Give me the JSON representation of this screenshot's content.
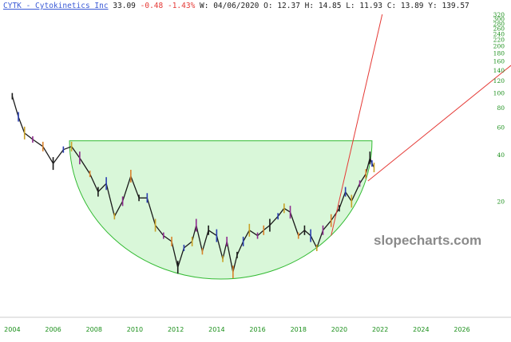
{
  "header": {
    "symbol_link": "CYTK - Cytokinetics Inc",
    "price": "33.09",
    "change": "-0.48",
    "change_pct": "-1.43%",
    "period": "W: 04/06/2020",
    "open_label": "O:",
    "open": "12.37",
    "high_label": "H:",
    "high": "14.85",
    "low_label": "L:",
    "low": "11.93",
    "close_label": "C:",
    "close": "13.89",
    "y_label": "Y:",
    "y": "139.57"
  },
  "watermark": "slopecharts.com",
  "colors": {
    "axis_text": "#1a8f1a",
    "bowl_fill": "#d9f7d9",
    "bowl_stroke": "#33bb33",
    "trendline": "#e53935",
    "negative": "#e53935",
    "link": "#3b5bd6"
  },
  "chart_data": {
    "type": "line",
    "scale": "log",
    "ylim": [
      10,
      320
    ],
    "xlim": [
      2003.4,
      2028.4
    ],
    "y_ticks": [
      "320",
      "300",
      "280",
      "260",
      "240",
      "220",
      "200",
      "180",
      "160",
      "140",
      "120",
      "100",
      "80",
      "60",
      "40",
      "20"
    ],
    "x_ticks": [
      "2004",
      "2006",
      "2008",
      "2010",
      "2012",
      "2014",
      "2016",
      "2018",
      "2020",
      "2022",
      "2024",
      "2026"
    ],
    "grid": false,
    "series": [
      {
        "x": [
          2004.0,
          2004.3,
          2004.6,
          2005.0,
          2005.5,
          2006.0,
          2006.5,
          2006.9,
          2007.3,
          2007.8,
          2008.2,
          2008.6,
          2009.0,
          2009.4,
          2009.8,
          2010.2,
          2010.6,
          2011.0,
          2011.4,
          2011.8,
          2012.1,
          2012.4,
          2012.8,
          2013.0,
          2013.3,
          2013.6,
          2014.0,
          2014.3,
          2014.5,
          2014.8,
          2015.0,
          2015.3,
          2015.6,
          2016.0,
          2016.3,
          2016.6,
          2017.0,
          2017.3,
          2017.6,
          2018.0,
          2018.3,
          2018.6,
          2018.9,
          2019.2,
          2019.6,
          2020.0,
          2020.3,
          2020.6,
          2021.0,
          2021.3,
          2021.5,
          2021.6,
          2021.7
        ],
        "y": [
          95,
          70,
          55,
          50,
          45,
          35,
          43,
          45,
          38,
          30,
          23,
          26,
          16,
          20,
          29,
          21,
          21,
          14,
          12,
          11,
          7.5,
          10,
          11,
          14,
          9.5,
          13,
          12,
          8.5,
          11,
          7,
          9,
          11,
          13,
          12,
          13,
          14,
          16,
          18,
          17,
          12,
          13,
          12,
          10,
          13,
          15,
          18,
          23,
          20,
          26,
          30,
          38,
          35,
          33
        ]
      }
    ],
    "overlays": {
      "bowl": {
        "x_start": 2006.8,
        "x_end": 2021.6,
        "rim_y": 49,
        "bottom_x": 2014.5,
        "bottom_y": 6.3
      },
      "trendlines": [
        {
          "x": [
            2019.6,
            2022.1
          ],
          "y": [
            12,
            320
          ]
        },
        {
          "x": [
            2021.4,
            2028.4
          ],
          "y": [
            27,
            150
          ]
        }
      ]
    }
  }
}
